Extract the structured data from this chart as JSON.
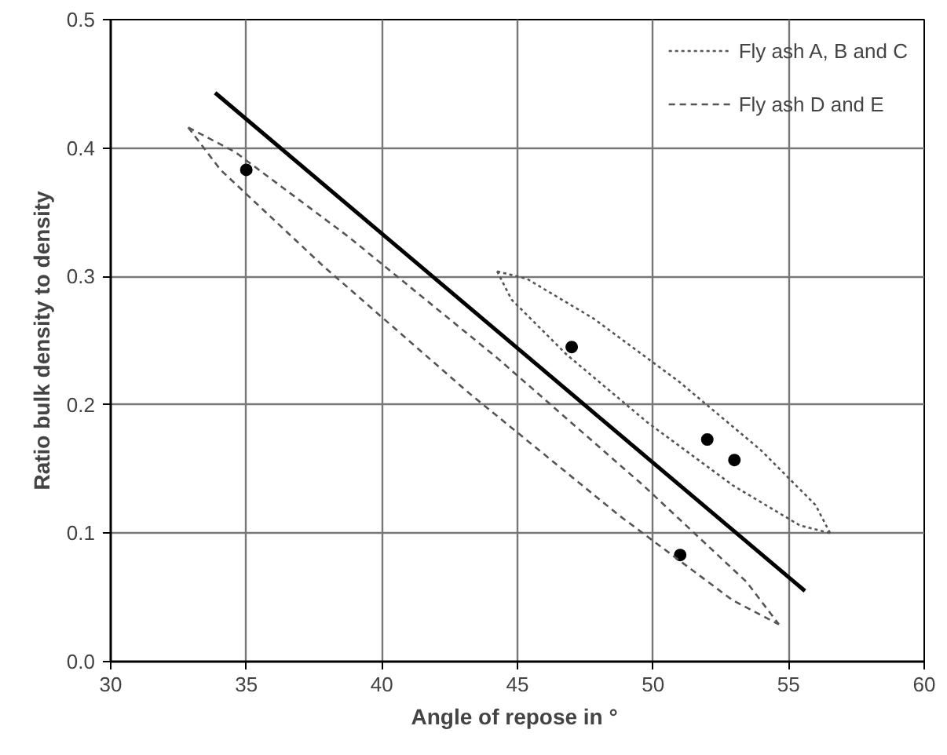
{
  "chart_data": {
    "type": "scatter",
    "xlabel": "Angle of repose  in °",
    "ylabel": "Ratio bulk density to density",
    "xlim": [
      30,
      60
    ],
    "ylim": [
      0,
      0.5
    ],
    "xticks": [
      30,
      35,
      40,
      45,
      50,
      55,
      60
    ],
    "yticks": [
      {
        "value": 0,
        "label": "0.0"
      },
      {
        "value": 0.1,
        "label": "0.1"
      },
      {
        "value": 0.2,
        "label": "0.2"
      },
      {
        "value": 0.3,
        "label": "0.3"
      },
      {
        "value": 0.4,
        "label": "0.4"
      },
      {
        "value": 0.5,
        "label": "0.5"
      }
    ],
    "grid": true,
    "legend": "top right",
    "series": [
      {
        "marker": "circle",
        "color": "#000000",
        "x": [
          35,
          47,
          52,
          53,
          51
        ],
        "values": [
          0.383,
          0.245,
          0.173,
          0.157,
          0.083
        ]
      },
      {
        "type": "line",
        "line_style": "solid",
        "color": "#000000",
        "x": [
          33.85,
          55.6
        ],
        "values": [
          0.443,
          0.055
        ]
      },
      {
        "type": "line",
        "line_style": "dotted",
        "name": "Fly ash A, B and C",
        "color": "#555555",
        "x": [
          44.25,
          45.36,
          47.82,
          50.96,
          53.96,
          55.99,
          56.53
        ],
        "values": [
          0.304,
          0.298,
          0.267,
          0.218,
          0.165,
          0.122,
          0.1
        ]
      },
      {
        "type": "line",
        "line_style": "dotted",
        "color": "#555555",
        "x": [
          44.25,
          44.78,
          46.82,
          49.81,
          52.96,
          55.42,
          56.53
        ],
        "values": [
          0.304,
          0.282,
          0.239,
          0.186,
          0.137,
          0.106,
          0.1
        ]
      },
      {
        "type": "line",
        "line_style": "dashed",
        "name": "Fly ash D and E",
        "color": "#555555",
        "x": [
          32.86,
          34.58,
          38.76,
          44.28,
          49.65,
          53.45,
          54.64
        ],
        "values": [
          0.416,
          0.397,
          0.331,
          0.236,
          0.137,
          0.062,
          0.029
        ]
      },
      {
        "type": "line",
        "line_style": "dashed",
        "color": "#555555",
        "x": [
          32.86,
          34.05,
          37.84,
          43.22,
          48.74,
          52.92,
          54.64
        ],
        "values": [
          0.416,
          0.383,
          0.308,
          0.209,
          0.114,
          0.048,
          0.029
        ]
      }
    ]
  }
}
